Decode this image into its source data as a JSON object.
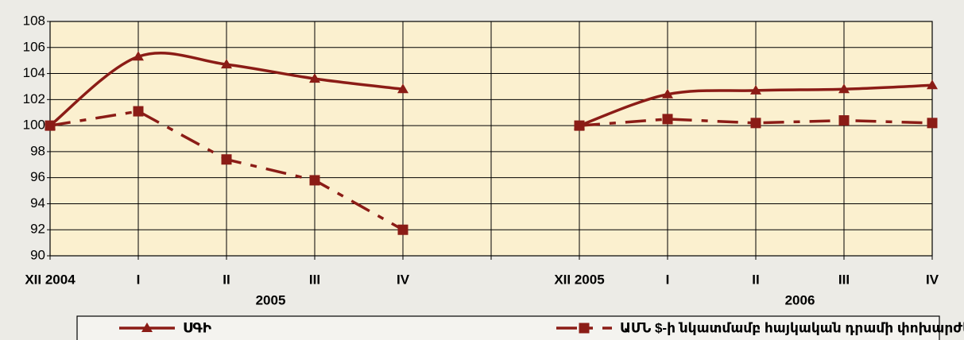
{
  "chart_data": {
    "type": "line",
    "categories": [
      "XII 2004",
      "I",
      "II",
      "III",
      "IV",
      null,
      "XII 2005",
      "I",
      "II",
      "III",
      "IV"
    ],
    "group_labels": [
      {
        "label": "2005",
        "from": 1,
        "to": 4
      },
      {
        "label": "2006",
        "from": 7,
        "to": 10
      }
    ],
    "series": [
      {
        "name": "ՍԳԻ",
        "color": "#8b1c16",
        "marker": "triangle",
        "dash": false,
        "values": [
          100,
          105.3,
          104.7,
          103.6,
          102.8,
          null,
          100,
          102.4,
          102.7,
          102.8,
          103.1
        ]
      },
      {
        "name": "ԱՄՆ $-ի նկատմամբ հայկական դրամի փոխարժեքը",
        "color": "#8b1c16",
        "marker": "square",
        "dash": true,
        "values": [
          100,
          101.1,
          97.4,
          95.8,
          92.0,
          null,
          100,
          100.5,
          100.2,
          100.4,
          100.2
        ]
      }
    ],
    "ylim": [
      90,
      108
    ],
    "yticks": [
      90,
      92,
      94,
      96,
      98,
      100,
      102,
      104,
      106,
      108
    ],
    "grid": true,
    "legend": "bottom"
  }
}
